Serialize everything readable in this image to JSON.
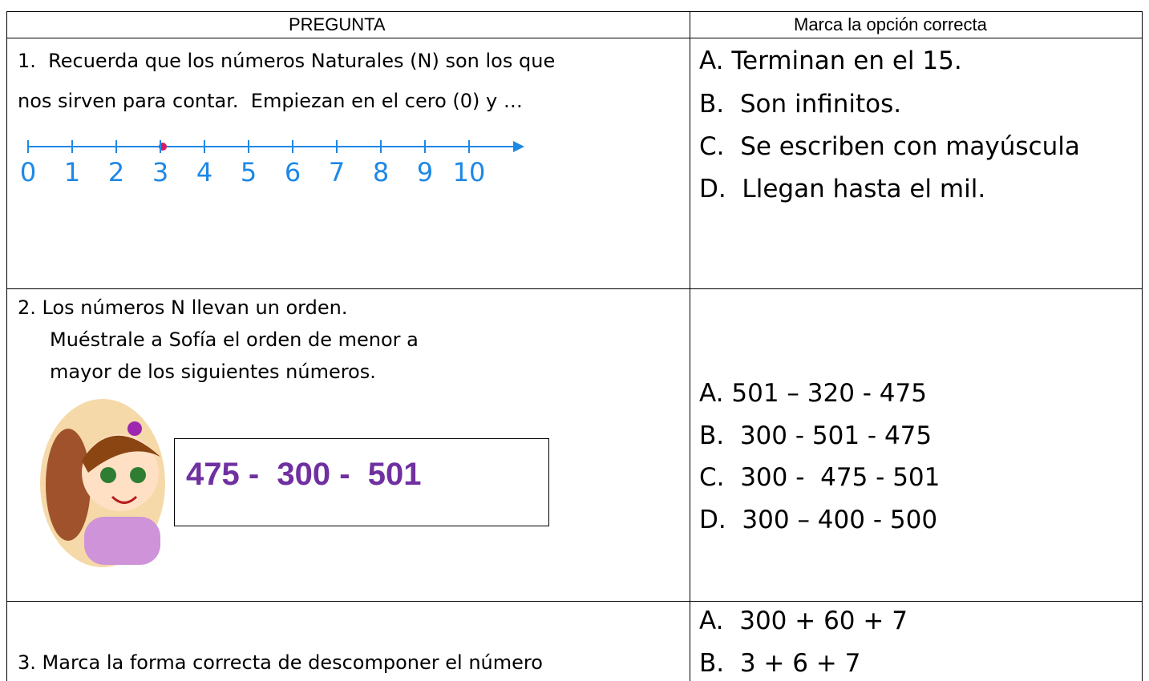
{
  "header": {
    "question": "PREGUNTA",
    "answer": "Marca la opción correcta"
  },
  "questions": [
    {
      "lines": [
        "1.  Recuerda que los números Naturales (N) son los que",
        "nos sirven para contar.  Empiezan en el cero (0) y …"
      ],
      "number_line": [
        "0",
        "1",
        "2",
        "3",
        "4",
        "5",
        "6",
        "7",
        "8",
        "9",
        "10"
      ],
      "options": [
        "A. Terminan en el 15.",
        "B.  Son infinitos.",
        "C.  Se escriben con mayúscula",
        "D.  Llegan hasta el mil."
      ]
    },
    {
      "lines": [
        "2. Los números N llevan un orden.",
        "Muéstrale a Sofía el orden de menor a",
        "mayor de los siguientes números."
      ],
      "box": "475 -  300 -  501",
      "options": [
        "A. 501 – 320 - 475",
        "B.  300 - 501 - 475",
        "C.  300 -  475 - 501",
        "D.  300 – 400 - 500"
      ]
    },
    {
      "lines": [
        "3. Marca la forma correcta de descomponer el número"
      ],
      "options": [
        "A.  300 + 60 + 7",
        "B.  3 + 6 + 7"
      ]
    }
  ]
}
